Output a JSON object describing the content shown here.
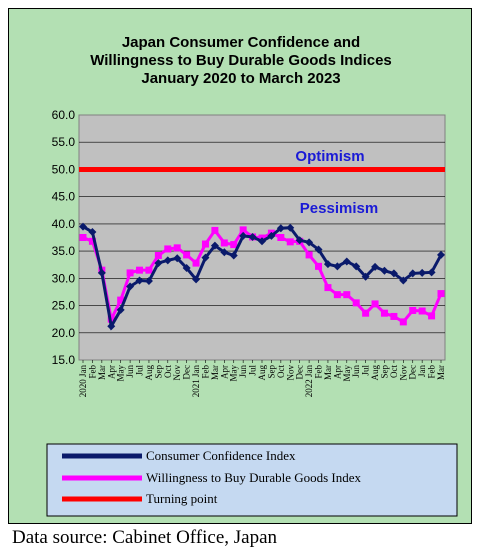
{
  "chart_data": {
    "type": "line",
    "title": [
      "Japan Consumer Confidence and",
      "Willingness to Buy Durable Goods Indices",
      "January 2020 to March 2023"
    ],
    "ylim": [
      15,
      60
    ],
    "yticks": [
      "15.0",
      "20.0",
      "25.0",
      "30.0",
      "35.0",
      "40.0",
      "45.0",
      "50.0",
      "55.0",
      "60.0"
    ],
    "x": [
      "2020 Jan",
      "Feb",
      "Mar",
      "Apr",
      "May",
      "Jun",
      "Jul",
      "Aug",
      "Sep",
      "Oct",
      "Nov",
      "Dec",
      "2021 Jan",
      "Feb",
      "Mar",
      "Apr",
      "May",
      "Jun",
      "Jul",
      "Aug",
      "Sep",
      "Oct",
      "Nov",
      "Dec",
      "2022 Jan",
      "Feb",
      "Mar",
      "Apr",
      "May",
      "Jun",
      "Jul",
      "Aug",
      "Sep",
      "Oct",
      "Nov",
      "Dec",
      "2023 Jan",
      "Feb",
      "Mar"
    ],
    "xtick_labels": [
      "2020 Jan",
      "Feb",
      "Mar",
      "Apr",
      "May",
      "Jun",
      "Jul",
      "Aug",
      "Sep",
      "Oct",
      "Nov",
      "Dec",
      "2021 Jan",
      "Feb",
      "Mar",
      "Apr",
      "May",
      "Jun",
      "Jul",
      "Aug",
      "Sep",
      "Oct",
      "Nov",
      "Dec",
      "2022 Jan",
      "Feb",
      "Mar",
      "Apr",
      "May",
      "Jun",
      "Jul",
      "Aug",
      "Sep",
      "Oct",
      "Nov",
      "Dec",
      "Jan",
      "Feb",
      "Mar"
    ],
    "series": [
      {
        "name": "Consumer Confidence Index",
        "color": "#0a1a6b",
        "values": [
          39.5,
          38.5,
          31.0,
          21.2,
          24.2,
          28.5,
          29.6,
          29.5,
          32.8,
          33.3,
          33.7,
          31.9,
          29.8,
          33.8,
          36.0,
          34.8,
          34.2,
          37.8,
          37.6,
          36.8,
          37.8,
          39.2,
          39.3,
          37.0,
          36.6,
          35.3,
          32.6,
          32.2,
          33.1,
          32.2,
          30.3,
          32.1,
          31.4,
          30.9,
          29.6,
          30.9,
          31.0,
          31.1,
          34.3
        ]
      },
      {
        "name": "Willingness to Buy Durable Goods Index",
        "color": "#ff00ff",
        "values": [
          37.5,
          36.8,
          31.5,
          22.5,
          26.0,
          31.0,
          31.5,
          31.5,
          34.2,
          35.4,
          35.6,
          34.3,
          32.8,
          36.3,
          38.8,
          36.5,
          36.2,
          38.9,
          37.6,
          37.4,
          38.3,
          37.5,
          36.7,
          36.8,
          34.3,
          32.2,
          28.3,
          27.0,
          27.0,
          25.5,
          23.6,
          25.3,
          23.6,
          23.0,
          22.0,
          24.1,
          24.0,
          23.1,
          27.2
        ]
      },
      {
        "name": "Turning point",
        "color": "#ff0000",
        "values": [
          50,
          50,
          50,
          50,
          50,
          50,
          50,
          50,
          50,
          50,
          50,
          50,
          50,
          50,
          50,
          50,
          50,
          50,
          50,
          50,
          50,
          50,
          50,
          50,
          50,
          50,
          50,
          50,
          50,
          50,
          50,
          50,
          50,
          50,
          50,
          50,
          50,
          50,
          50
        ]
      }
    ],
    "annotations": [
      "Optimism",
      "Pessimism"
    ],
    "plot_background": "#c0c0c0",
    "chart_background": "#b3e0b3",
    "legend_background": "#c5d9f1",
    "grid": true,
    "legend_position": "bottom"
  },
  "footer": "Data source: Cabinet Office, Japan"
}
